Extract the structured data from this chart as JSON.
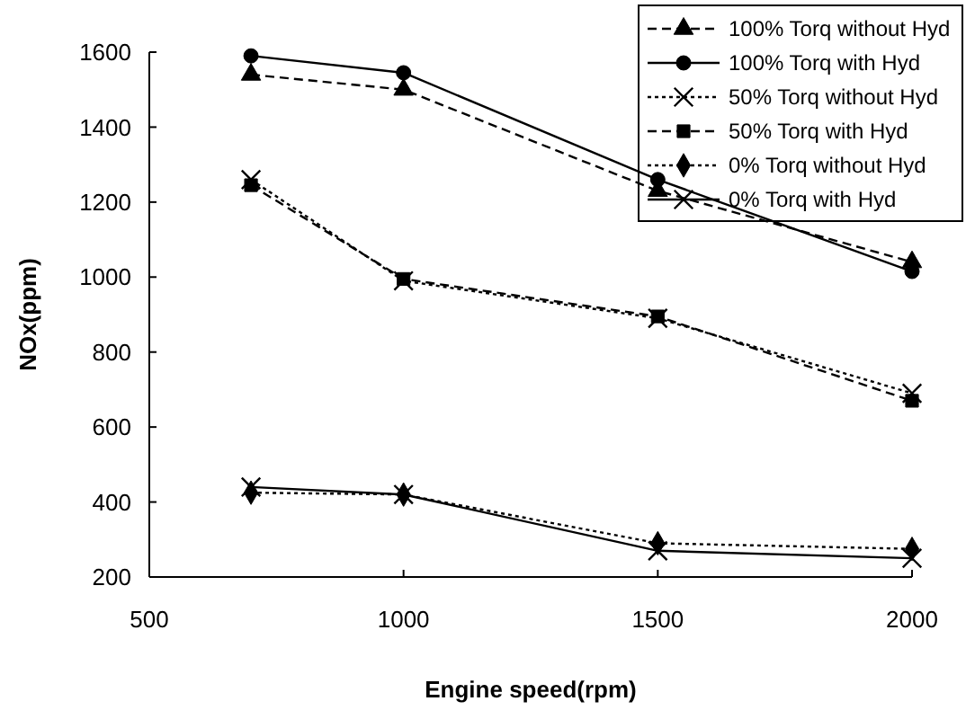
{
  "chart_data": {
    "type": "line",
    "xlabel": "Engine speed(rpm)",
    "ylabel": "NOx(ppm)",
    "x": [
      700,
      1000,
      1500,
      2000
    ],
    "xlim": [
      500,
      2000
    ],
    "xticks": [
      500,
      1000,
      1500,
      2000
    ],
    "ylim": [
      200,
      1600
    ],
    "yticks": [
      200,
      400,
      600,
      800,
      1000,
      1200,
      1400,
      1600
    ],
    "grid": false,
    "legend": "top right",
    "series": [
      {
        "name": "100% Torq without Hyd",
        "color": "#000000",
        "marker": "triangle",
        "line_style": "dashed",
        "values": [
          1540,
          1500,
          1230,
          1040
        ]
      },
      {
        "name": "100% Torq with Hyd",
        "color": "#000000",
        "marker": "circle",
        "line_style": "solid",
        "values": [
          1590,
          1545,
          1260,
          1015
        ]
      },
      {
        "name": "50% Torq without Hyd",
        "color": "#000000",
        "marker": "cross",
        "line_style": "dotted",
        "values": [
          1260,
          990,
          890,
          690
        ]
      },
      {
        "name": "50% Torq with Hyd",
        "color": "#000000",
        "marker": "square",
        "line_style": "dashed",
        "values": [
          1245,
          995,
          895,
          670
        ]
      },
      {
        "name": "0% Torq without Hyd",
        "color": "#000000",
        "marker": "diamond",
        "line_style": "dotted",
        "values": [
          425,
          420,
          290,
          275
        ]
      },
      {
        "name": "0% Torq with Hyd",
        "color": "#000000",
        "marker": "cross",
        "line_style": "solid",
        "values": [
          440,
          420,
          270,
          250
        ]
      }
    ]
  }
}
